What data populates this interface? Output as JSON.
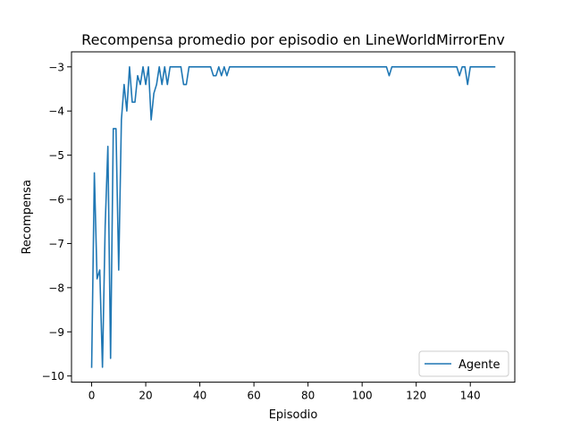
{
  "chart_data": {
    "type": "line",
    "title": "Recompensa promedio por episodio en LineWorldMirrorEnv",
    "xlabel": "Episodio",
    "ylabel": "Recompensa",
    "xlim": [
      -7.45,
      156.45
    ],
    "ylim": [
      -10.14,
      -2.66
    ],
    "xticks": [
      0,
      20,
      40,
      60,
      80,
      100,
      120,
      140
    ],
    "yticks": [
      -10,
      -9,
      -8,
      -7,
      -6,
      -5,
      -4,
      -3
    ],
    "xtick_labels": [
      "0",
      "20",
      "40",
      "60",
      "80",
      "100",
      "120",
      "140"
    ],
    "ytick_labels": [
      "−10",
      "−9",
      "−8",
      "−7",
      "−6",
      "−5",
      "−4",
      "−3"
    ],
    "grid": false,
    "legend_position": "lower right",
    "series": [
      {
        "name": "Agente",
        "color": "#1f77b4",
        "x": [
          0,
          1,
          2,
          3,
          4,
          5,
          6,
          7,
          8,
          9,
          10,
          11,
          12,
          13,
          14,
          15,
          16,
          17,
          18,
          19,
          20,
          21,
          22,
          23,
          24,
          25,
          26,
          27,
          28,
          29,
          30,
          31,
          32,
          33,
          34,
          35,
          36,
          37,
          38,
          39,
          40,
          41,
          42,
          43,
          44,
          45,
          46,
          47,
          48,
          49,
          50,
          51,
          52,
          53,
          54,
          55,
          56,
          57,
          58,
          59,
          60,
          61,
          62,
          63,
          64,
          65,
          66,
          67,
          68,
          69,
          70,
          71,
          72,
          73,
          74,
          75,
          76,
          77,
          78,
          79,
          80,
          81,
          82,
          83,
          84,
          85,
          86,
          87,
          88,
          89,
          90,
          91,
          92,
          93,
          94,
          95,
          96,
          97,
          98,
          99,
          100,
          101,
          102,
          103,
          104,
          105,
          106,
          107,
          108,
          109,
          110,
          111,
          112,
          113,
          114,
          115,
          116,
          117,
          118,
          119,
          120,
          121,
          122,
          123,
          124,
          125,
          126,
          127,
          128,
          129,
          130,
          131,
          132,
          133,
          134,
          135,
          136,
          137,
          138,
          139,
          140,
          141,
          142,
          143,
          144,
          145,
          146,
          147,
          148,
          149
        ],
        "y": [
          -9.8,
          -5.4,
          -7.8,
          -7.6,
          -9.8,
          -6.6,
          -4.8,
          -9.6,
          -4.4,
          -4.4,
          -7.6,
          -4.2,
          -3.4,
          -4.0,
          -3.0,
          -3.8,
          -3.8,
          -3.2,
          -3.4,
          -3.0,
          -3.4,
          -3.0,
          -4.2,
          -3.6,
          -3.4,
          -3.0,
          -3.4,
          -3.0,
          -3.4,
          -3.0,
          -3.0,
          -3.0,
          -3.0,
          -3.0,
          -3.4,
          -3.4,
          -3.0,
          -3.0,
          -3.0,
          -3.0,
          -3.0,
          -3.0,
          -3.0,
          -3.0,
          -3.0,
          -3.2,
          -3.2,
          -3.0,
          -3.2,
          -3.0,
          -3.2,
          -3.0,
          -3.0,
          -3.0,
          -3.0,
          -3.0,
          -3.0,
          -3.0,
          -3.0,
          -3.0,
          -3.0,
          -3.0,
          -3.0,
          -3.0,
          -3.0,
          -3.0,
          -3.0,
          -3.0,
          -3.0,
          -3.0,
          -3.0,
          -3.0,
          -3.0,
          -3.0,
          -3.0,
          -3.0,
          -3.0,
          -3.0,
          -3.0,
          -3.0,
          -3.0,
          -3.0,
          -3.0,
          -3.0,
          -3.0,
          -3.0,
          -3.0,
          -3.0,
          -3.0,
          -3.0,
          -3.0,
          -3.0,
          -3.0,
          -3.0,
          -3.0,
          -3.0,
          -3.0,
          -3.0,
          -3.0,
          -3.0,
          -3.0,
          -3.0,
          -3.0,
          -3.0,
          -3.0,
          -3.0,
          -3.0,
          -3.0,
          -3.0,
          -3.0,
          -3.2,
          -3.0,
          -3.0,
          -3.0,
          -3.0,
          -3.0,
          -3.0,
          -3.0,
          -3.0,
          -3.0,
          -3.0,
          -3.0,
          -3.0,
          -3.0,
          -3.0,
          -3.0,
          -3.0,
          -3.0,
          -3.0,
          -3.0,
          -3.0,
          -3.0,
          -3.0,
          -3.0,
          -3.0,
          -3.0,
          -3.2,
          -3.0,
          -3.0,
          -3.4,
          -3.0,
          -3.0,
          -3.0,
          -3.0,
          -3.0,
          -3.0,
          -3.0,
          -3.0,
          -3.0,
          -3.0
        ]
      }
    ]
  }
}
